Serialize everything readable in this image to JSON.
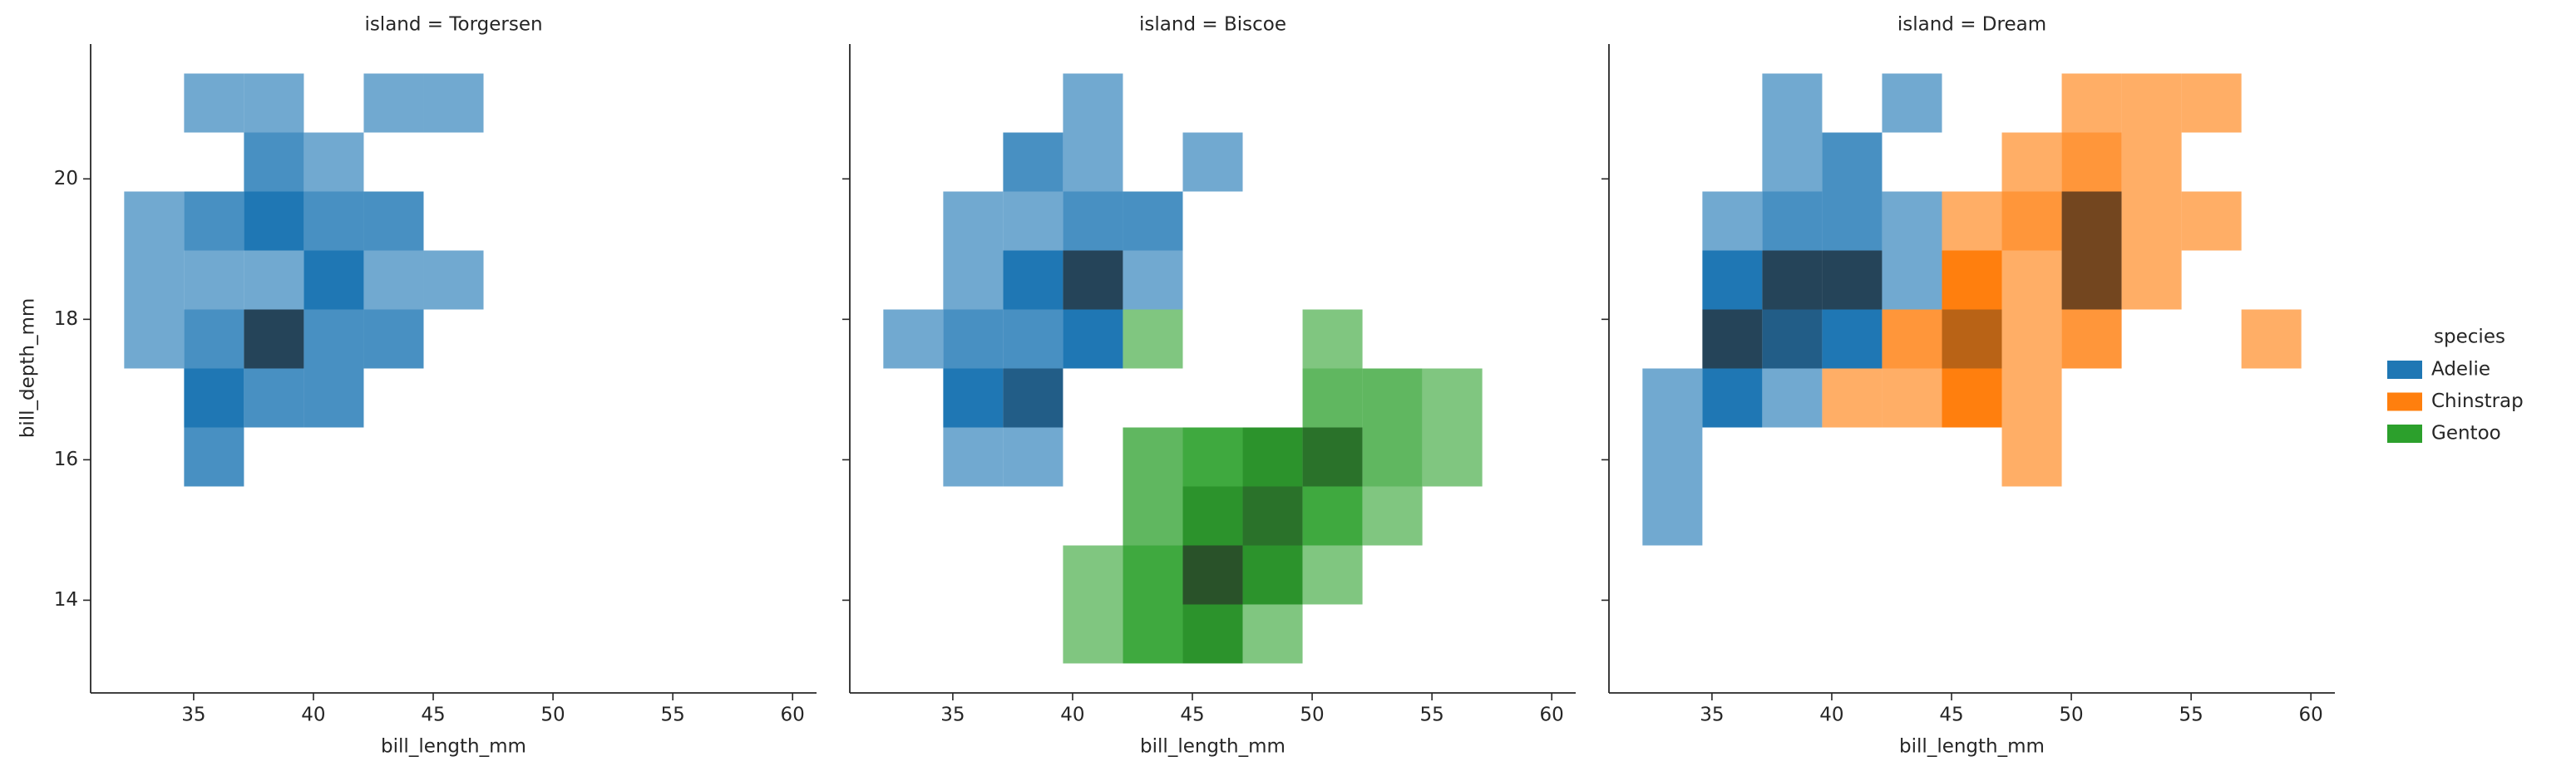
{
  "chart_data": {
    "type": "histogram2d",
    "x_label": "bill_length_mm",
    "y_label": "bill_depth_mm",
    "xbins": [
      32.1,
      34.6,
      37.1,
      39.6,
      42.1,
      44.6,
      47.1,
      49.6,
      52.1,
      54.6,
      57.1,
      59.6
    ],
    "ybins": [
      13.1,
      13.94,
      14.78,
      15.62,
      16.46,
      17.3,
      18.14,
      18.98,
      19.82,
      20.66,
      21.5
    ],
    "xlim": [
      30.7,
      61.0
    ],
    "ylim": [
      12.68,
      21.92
    ],
    "xticks": [
      35,
      40,
      45,
      50,
      55,
      60
    ],
    "yticks": [
      14,
      16,
      18,
      20
    ],
    "legend_title": "species",
    "legend_position": "right",
    "series": [
      {
        "name": "Adelie",
        "color": "#1f77b4"
      },
      {
        "name": "Chinstrap",
        "color": "#ff7f0e"
      },
      {
        "name": "Gentoo",
        "color": "#2ca02c"
      }
    ],
    "facets": [
      {
        "title": "island = Torgersen",
        "counts": [
          [
            [
              0,
              0,
              0,
              0,
              0,
              0,
              0,
              0,
              0,
              0,
              0
            ],
            [
              0,
              0,
              0,
              0,
              0,
              0,
              0,
              0,
              0,
              0,
              0
            ],
            [
              0,
              0,
              0,
              0,
              0,
              0,
              0,
              0,
              0,
              0,
              0
            ],
            [
              0,
              2,
              0,
              0,
              0,
              0,
              0,
              0,
              0,
              0,
              0
            ],
            [
              0,
              3,
              2,
              2,
              0,
              0,
              0,
              0,
              0,
              0,
              0
            ],
            [
              1,
              2,
              5,
              2,
              2,
              0,
              0,
              0,
              0,
              0,
              0
            ],
            [
              1,
              1,
              1,
              3,
              1,
              1,
              0,
              0,
              0,
              0,
              0
            ],
            [
              1,
              2,
              3,
              2,
              2,
              0,
              0,
              0,
              0,
              0,
              0
            ],
            [
              0,
              0,
              2,
              1,
              0,
              0,
              0,
              0,
              0,
              0,
              0
            ],
            [
              0,
              1,
              1,
              0,
              1,
              1,
              0,
              0,
              0,
              0,
              0
            ]
          ],
          null,
          null
        ]
      },
      {
        "title": "island = Biscoe",
        "counts": [
          [
            [
              0,
              0,
              0,
              0,
              0,
              0,
              0,
              0,
              0,
              0,
              0
            ],
            [
              0,
              0,
              0,
              0,
              0,
              0,
              0,
              0,
              0,
              0,
              0
            ],
            [
              0,
              0,
              0,
              0,
              0,
              0,
              0,
              0,
              0,
              0,
              0
            ],
            [
              0,
              1,
              1,
              0,
              0,
              0,
              0,
              0,
              0,
              0,
              0
            ],
            [
              0,
              3,
              4,
              0,
              0,
              0,
              0,
              0,
              0,
              0,
              0
            ],
            [
              1,
              2,
              2,
              3,
              0,
              0,
              0,
              0,
              0,
              0,
              0
            ],
            [
              0,
              1,
              3,
              5,
              1,
              0,
              0,
              0,
              0,
              0,
              0
            ],
            [
              0,
              1,
              1,
              2,
              2,
              0,
              0,
              0,
              0,
              0,
              0
            ],
            [
              0,
              0,
              2,
              1,
              0,
              1,
              0,
              0,
              0,
              0,
              0
            ],
            [
              0,
              0,
              0,
              1,
              0,
              0,
              0,
              0,
              0,
              0,
              0
            ]
          ],
          null,
          [
            [
              0,
              0,
              0,
              1,
              3,
              4,
              1,
              0,
              0,
              0,
              0
            ],
            [
              0,
              0,
              0,
              1,
              3,
              6,
              4,
              1,
              0,
              0,
              0
            ],
            [
              0,
              0,
              0,
              0,
              2,
              4,
              5,
              3,
              1,
              0,
              0
            ],
            [
              0,
              0,
              0,
              0,
              2,
              3,
              4,
              5,
              2,
              1,
              0
            ],
            [
              0,
              0,
              0,
              0,
              0,
              0,
              0,
              2,
              2,
              1,
              0
            ],
            [
              0,
              0,
              0,
              0,
              1,
              0,
              0,
              1,
              0,
              0,
              0
            ],
            [
              0,
              0,
              0,
              0,
              0,
              0,
              0,
              0,
              0,
              0,
              0
            ],
            [
              0,
              0,
              0,
              0,
              0,
              0,
              0,
              0,
              0,
              0,
              0
            ],
            [
              0,
              0,
              0,
              0,
              0,
              0,
              0,
              0,
              0,
              0,
              0
            ],
            [
              0,
              0,
              0,
              0,
              0,
              0,
              0,
              0,
              0,
              0,
              0
            ]
          ]
        ]
      },
      {
        "title": "island = Dream",
        "counts": [
          [
            [
              0,
              0,
              0,
              0,
              0,
              0,
              0,
              0,
              0,
              0,
              0
            ],
            [
              0,
              0,
              0,
              0,
              0,
              0,
              0,
              0,
              0,
              0,
              0
            ],
            [
              1,
              0,
              0,
              0,
              0,
              0,
              0,
              0,
              0,
              0,
              0
            ],
            [
              1,
              0,
              0,
              0,
              0,
              0,
              0,
              0,
              0,
              0,
              0
            ],
            [
              1,
              3,
              1,
              0,
              0,
              0,
              0,
              0,
              0,
              0,
              0
            ],
            [
              0,
              5,
              4,
              3,
              0,
              0,
              0,
              0,
              0,
              0,
              0
            ],
            [
              0,
              3,
              5,
              5,
              1,
              0,
              0,
              0,
              0,
              0,
              0
            ],
            [
              0,
              1,
              2,
              2,
              1,
              0,
              0,
              0,
              0,
              0,
              0
            ],
            [
              0,
              0,
              1,
              2,
              0,
              0,
              0,
              0,
              0,
              0,
              0
            ],
            [
              0,
              0,
              1,
              0,
              1,
              0,
              0,
              0,
              0,
              0,
              0
            ]
          ],
          [
            [
              0,
              0,
              0,
              0,
              0,
              0,
              0,
              0,
              0,
              0,
              0
            ],
            [
              0,
              0,
              0,
              0,
              0,
              0,
              0,
              0,
              0,
              0,
              0
            ],
            [
              0,
              0,
              0,
              0,
              0,
              0,
              0,
              0,
              0,
              0,
              0
            ],
            [
              0,
              0,
              0,
              0,
              0,
              0,
              1,
              0,
              0,
              0,
              0
            ],
            [
              0,
              0,
              0,
              1,
              1,
              3,
              1,
              0,
              0,
              0,
              0
            ],
            [
              0,
              0,
              0,
              0,
              2,
              4,
              1,
              2,
              0,
              0,
              1
            ],
            [
              0,
              0,
              0,
              0,
              0,
              3,
              1,
              5,
              1,
              0,
              0
            ],
            [
              0,
              0,
              0,
              0,
              0,
              1,
              2,
              5,
              1,
              1,
              0
            ],
            [
              0,
              0,
              0,
              0,
              0,
              0,
              1,
              2,
              1,
              0,
              0
            ],
            [
              0,
              0,
              0,
              0,
              0,
              0,
              0,
              1,
              1,
              1,
              0
            ]
          ],
          null
        ]
      }
    ]
  }
}
